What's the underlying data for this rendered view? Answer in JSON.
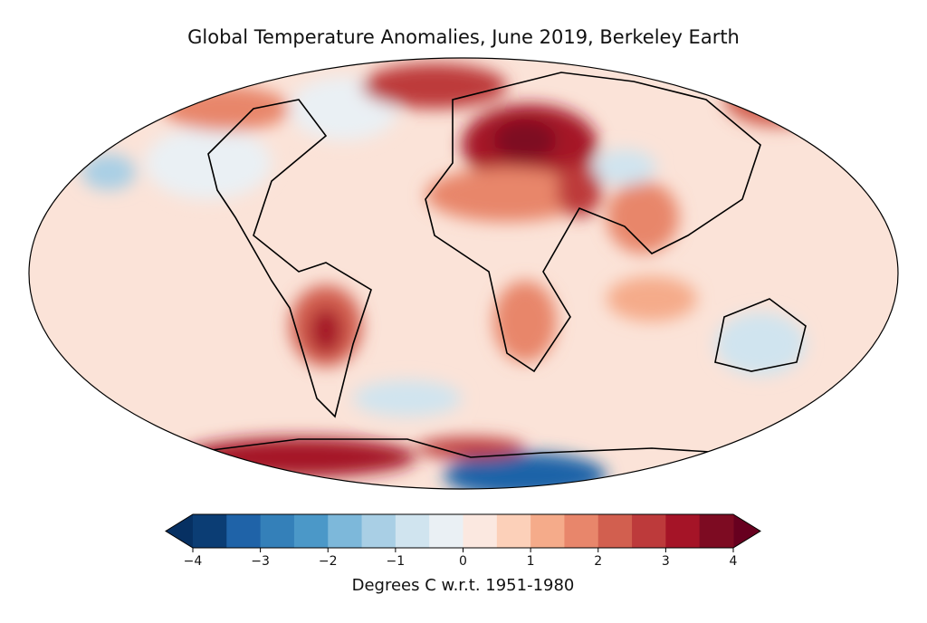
{
  "title": "Global Temperature Anomalies, June 2019, Berkeley Earth",
  "colorbar": {
    "label": "Degrees C w.r.t. 1951-1980",
    "range": [
      -4,
      4
    ],
    "ticks": [
      {
        "value": -4,
        "label": "−4"
      },
      {
        "value": -3,
        "label": "−3"
      },
      {
        "value": -2,
        "label": "−2"
      },
      {
        "value": -1,
        "label": "−1"
      },
      0,
      1,
      2,
      3,
      4
    ],
    "colors": [
      "#0b3d74",
      "#1f63a8",
      "#3480b9",
      "#4b98c8",
      "#7db8da",
      "#a9cfe5",
      "#d0e4ef",
      "#eaf0f4",
      "#fbe8e0",
      "#fcd0b9",
      "#f5ab8a",
      "#e8866b",
      "#d25f4f",
      "#bd3a3b",
      "#a51427",
      "#7d0b22"
    ],
    "under_color": "#063062",
    "over_color": "#67001f"
  }
}
